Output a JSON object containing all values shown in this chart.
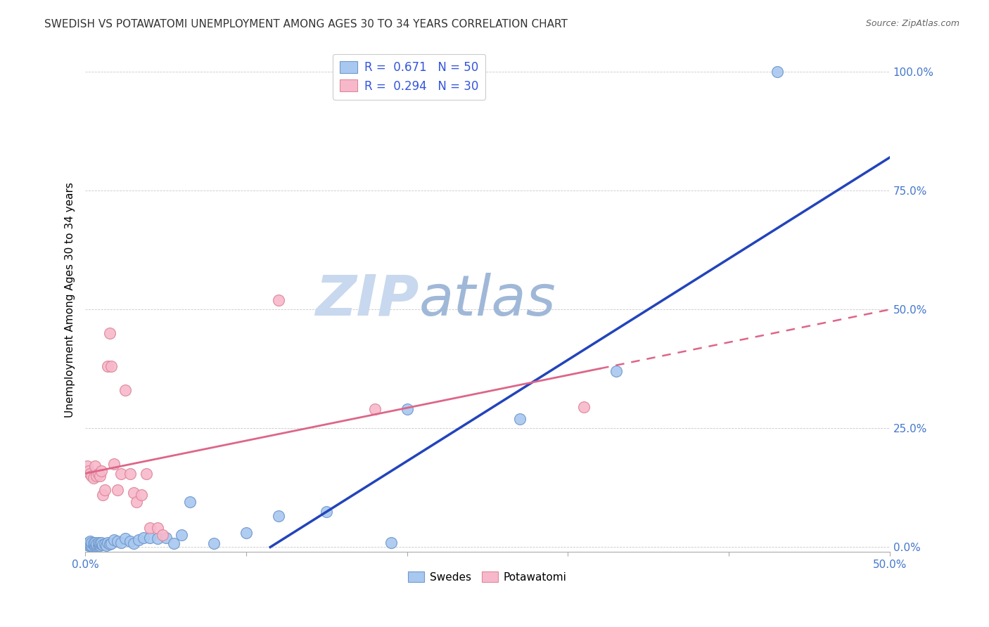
{
  "title": "SWEDISH VS POTAWATOMI UNEMPLOYMENT AMONG AGES 30 TO 34 YEARS CORRELATION CHART",
  "source": "Source: ZipAtlas.com",
  "ylabel": "Unemployment Among Ages 30 to 34 years",
  "xlim": [
    0.0,
    0.5
  ],
  "ylim": [
    -0.01,
    1.05
  ],
  "blue_R": 0.671,
  "blue_N": 50,
  "pink_R": 0.294,
  "pink_N": 30,
  "blue_color": "#a8c8f0",
  "pink_color": "#f8b8cc",
  "blue_edge_color": "#7099cc",
  "pink_edge_color": "#dd8899",
  "blue_line_color": "#2244bb",
  "pink_line_color": "#dd6688",
  "watermark_zip_color": "#ccd8ee",
  "watermark_atlas_color": "#9cb8dd",
  "blue_scatter_x": [
    0.001,
    0.001,
    0.002,
    0.002,
    0.003,
    0.003,
    0.003,
    0.004,
    0.004,
    0.005,
    0.005,
    0.006,
    0.006,
    0.007,
    0.007,
    0.008,
    0.008,
    0.009,
    0.009,
    0.01,
    0.01,
    0.011,
    0.012,
    0.013,
    0.014,
    0.015,
    0.016,
    0.018,
    0.02,
    0.022,
    0.025,
    0.028,
    0.03,
    0.033,
    0.036,
    0.04,
    0.045,
    0.05,
    0.055,
    0.06,
    0.065,
    0.08,
    0.1,
    0.12,
    0.15,
    0.19,
    0.2,
    0.27,
    0.33,
    0.43
  ],
  "blue_scatter_y": [
    0.005,
    0.008,
    0.003,
    0.01,
    0.004,
    0.007,
    0.012,
    0.003,
    0.009,
    0.005,
    0.008,
    0.004,
    0.01,
    0.003,
    0.007,
    0.005,
    0.009,
    0.004,
    0.008,
    0.006,
    0.01,
    0.005,
    0.007,
    0.004,
    0.009,
    0.006,
    0.008,
    0.015,
    0.012,
    0.01,
    0.018,
    0.012,
    0.008,
    0.015,
    0.02,
    0.02,
    0.018,
    0.02,
    0.008,
    0.025,
    0.095,
    0.008,
    0.03,
    0.065,
    0.075,
    0.01,
    0.29,
    0.27,
    0.37,
    1.0
  ],
  "pink_scatter_x": [
    0.001,
    0.002,
    0.003,
    0.004,
    0.005,
    0.006,
    0.007,
    0.008,
    0.009,
    0.01,
    0.011,
    0.012,
    0.014,
    0.015,
    0.016,
    0.018,
    0.02,
    0.022,
    0.025,
    0.028,
    0.03,
    0.032,
    0.035,
    0.038,
    0.04,
    0.045,
    0.048,
    0.12,
    0.18,
    0.31
  ],
  "pink_scatter_y": [
    0.17,
    0.16,
    0.155,
    0.15,
    0.145,
    0.17,
    0.15,
    0.155,
    0.15,
    0.16,
    0.11,
    0.12,
    0.38,
    0.45,
    0.38,
    0.175,
    0.12,
    0.155,
    0.33,
    0.155,
    0.115,
    0.095,
    0.11,
    0.155,
    0.04,
    0.04,
    0.025,
    0.52,
    0.29,
    0.295
  ],
  "blue_line_x0": 0.115,
  "blue_line_y0": 0.0,
  "blue_line_x1": 0.5,
  "blue_line_y1": 0.82,
  "pink_line_x0": 0.0,
  "pink_line_y0": 0.155,
  "pink_line_x1": 0.5,
  "pink_line_y1": 0.5
}
